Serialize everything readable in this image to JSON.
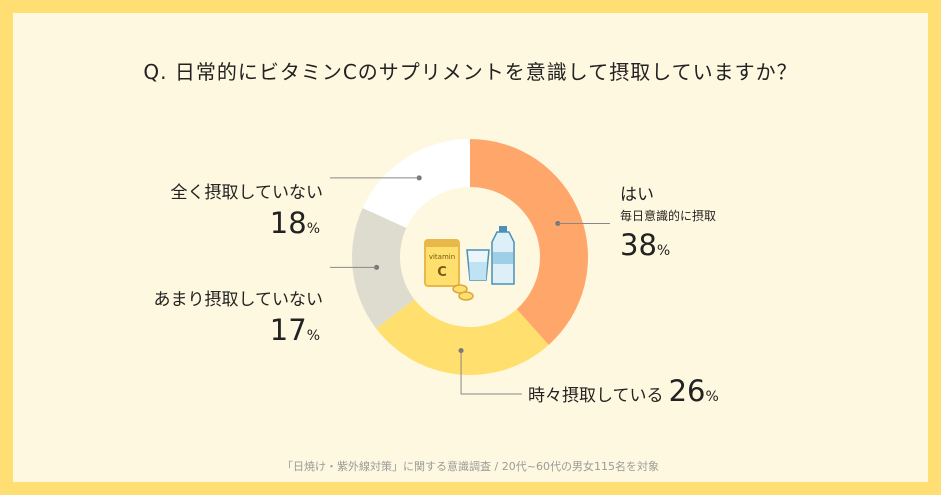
{
  "question": "Q. 日常的にビタミンCのサプリメントを意識して摂取していますか？",
  "footnote": "「日焼け・紫外線対策」に関する意識調査 / 20代~60代の男女115名を対象",
  "illustration_text": {
    "vitamin": "vitamin",
    "c": "C"
  },
  "labels": {
    "yes": {
      "name": "はい",
      "sub": "毎日意識的に摂取",
      "value": "38",
      "unit": "%"
    },
    "sometimes": {
      "name": "時々摂取している",
      "value": "26",
      "unit": "%"
    },
    "rarely": {
      "name": "あまり摂取していない",
      "value": "17",
      "unit": "%"
    },
    "never": {
      "name": "全く摂取していない",
      "value": "18",
      "unit": "%"
    }
  },
  "colors": {
    "yes": "#FFA66B",
    "sometimes": "#FFDF6E",
    "rarely": "#DDDCCF",
    "never": "#FFFFFF",
    "frame": "#FFDF73",
    "card": "#FFF8E0"
  },
  "chart_data": {
    "type": "pie",
    "categories": [
      "はい",
      "時々摂取している",
      "あまり摂取していない",
      "全く摂取していない"
    ],
    "values": [
      38,
      26,
      17,
      18
    ],
    "title": "Q. 日常的にビタミンCのサプリメントを意識して摂取していますか？"
  }
}
